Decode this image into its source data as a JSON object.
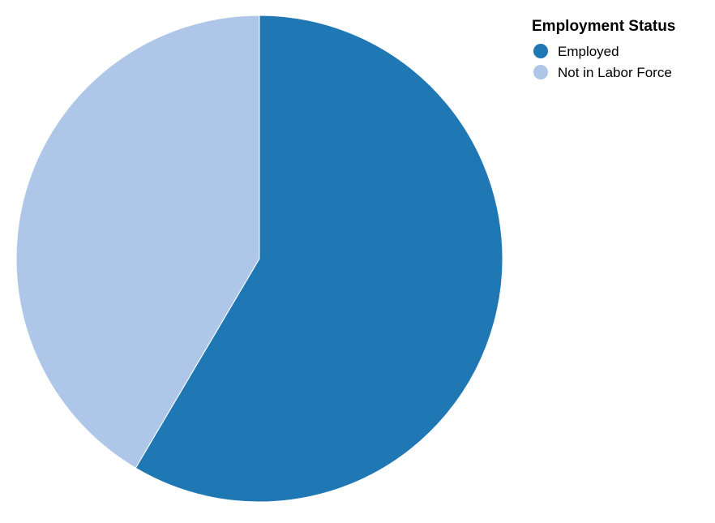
{
  "chart_data": {
    "type": "pie",
    "title": "",
    "legend": {
      "title": "Employment Status",
      "placement": "top-right"
    },
    "slices": [
      {
        "label": "Employed",
        "value": 58.5,
        "color": "#1f77b4"
      },
      {
        "label": "Not in Labor Force",
        "value": 41.5,
        "color": "#aec7e8"
      }
    ],
    "start_angle": "12 o'clock",
    "direction": "clockwise"
  }
}
